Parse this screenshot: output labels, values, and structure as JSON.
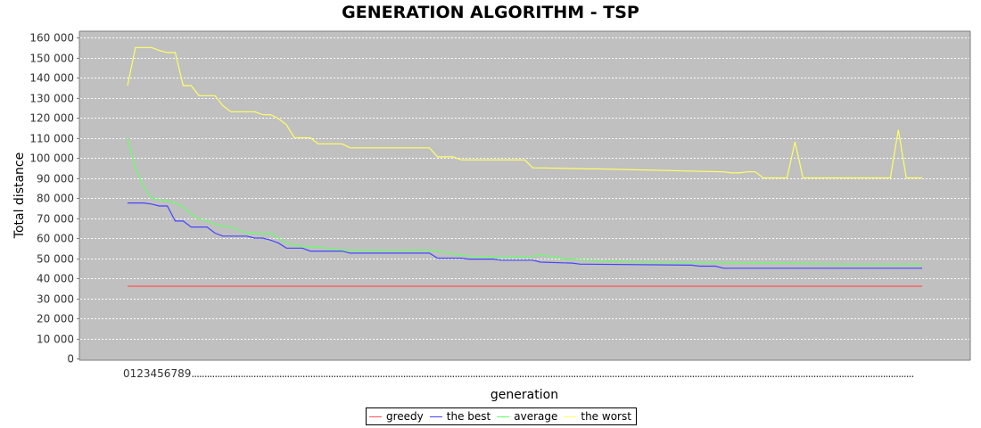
{
  "chart_data": {
    "type": "line",
    "title": "GENERATION ALGORITHM - TSP",
    "xlabel": "generation",
    "ylabel": "Total distance",
    "ylim": [
      0,
      160000
    ],
    "yticks": [
      0,
      10000,
      20000,
      30000,
      40000,
      50000,
      60000,
      70000,
      80000,
      90000,
      100000,
      110000,
      120000,
      130000,
      140000,
      150000,
      160000
    ],
    "ytick_labels": [
      "0",
      "10 000",
      "20 000",
      "30 000",
      "40 000",
      "50 000",
      "60 000",
      "70 000",
      "80 000",
      "90 000",
      "100 000",
      "110 000",
      "120 000",
      "130 000",
      "140 000",
      "150 000",
      "160 000"
    ],
    "x_tick_text": "0123456789",
    "x_tick_ellipsis": "........................................................................................................................................................................................................................................................................................",
    "x_range": [
      0,
      100
    ],
    "grid": true,
    "plot_background": "#c0c0c0",
    "legend_position": "bottom",
    "series": [
      {
        "name": "greedy",
        "color": "#ff5555",
        "x": [
          0,
          100
        ],
        "y": [
          36000,
          36000
        ]
      },
      {
        "name": "the best",
        "color": "#4444ff",
        "x": [
          0,
          2,
          3,
          4,
          5,
          6,
          7,
          8,
          9,
          10,
          11,
          12,
          13,
          14,
          15,
          16,
          17,
          18,
          19,
          20,
          21,
          22,
          23,
          27,
          28,
          38,
          39,
          42,
          43,
          46,
          47,
          51,
          52,
          56,
          57,
          58,
          71,
          72,
          74,
          75,
          100
        ],
        "y": [
          77500,
          77500,
          77000,
          76000,
          76000,
          68500,
          68500,
          65500,
          65500,
          65500,
          62500,
          61000,
          61000,
          61000,
          61000,
          60000,
          60000,
          59000,
          57500,
          55000,
          55000,
          55000,
          53500,
          53500,
          52500,
          52500,
          50000,
          50000,
          49500,
          49500,
          49000,
          49000,
          48000,
          47500,
          47000,
          47000,
          46500,
          46000,
          46000,
          45000,
          45000
        ]
      },
      {
        "name": "average",
        "color": "#66ff66",
        "x": [
          0,
          1,
          2,
          3,
          4,
          5,
          6,
          7,
          8,
          9,
          10,
          11,
          12,
          13,
          14,
          15,
          16,
          17,
          18,
          19,
          20,
          21,
          22,
          23,
          24,
          25,
          26,
          27,
          28,
          29,
          30,
          31,
          32,
          33,
          34,
          35,
          36,
          37,
          38,
          39,
          40,
          41,
          42,
          43,
          44,
          45,
          46,
          47,
          48,
          49,
          50,
          51,
          52,
          53,
          54,
          55,
          56,
          57,
          58,
          60,
          65,
          70,
          75,
          76,
          80,
          85,
          90,
          95,
          100
        ],
        "y": [
          110000,
          95000,
          86000,
          80000,
          79000,
          78500,
          77500,
          75500,
          72000,
          69500,
          68500,
          67000,
          66000,
          65500,
          64000,
          62500,
          62500,
          62000,
          62500,
          60000,
          57500,
          56500,
          56000,
          55500,
          55500,
          55000,
          54500,
          54000,
          54000,
          53800,
          53800,
          53800,
          53800,
          53700,
          53800,
          53800,
          54000,
          54000,
          53800,
          53500,
          53000,
          52000,
          51500,
          51000,
          50800,
          50500,
          50500,
          50300,
          50500,
          50500,
          50500,
          51000,
          51500,
          51000,
          50500,
          49500,
          49500,
          49200,
          49000,
          48500,
          48000,
          47800,
          47800,
          47500,
          47500,
          47300,
          47000,
          47000,
          47000
        ]
      },
      {
        "name": "the worst",
        "color": "#ffff66",
        "x": [
          0,
          1,
          2,
          3,
          4,
          5,
          6,
          7,
          8,
          9,
          10,
          11,
          12,
          13,
          14,
          15,
          16,
          17,
          18,
          19,
          20,
          21,
          22,
          23,
          24,
          25,
          26,
          27,
          28,
          29,
          38,
          39,
          40,
          41,
          42,
          50,
          51,
          52,
          58,
          59,
          75,
          76,
          77,
          78,
          79,
          80,
          83,
          84,
          85,
          96,
          97,
          98,
          100
        ],
        "y": [
          136000,
          155000,
          155000,
          155000,
          153500,
          152500,
          152500,
          136000,
          136000,
          131000,
          131000,
          131000,
          126000,
          123000,
          123000,
          123000,
          123000,
          121500,
          121500,
          119500,
          116500,
          110000,
          110000,
          110000,
          107000,
          107000,
          107000,
          107000,
          105000,
          105000,
          105000,
          100500,
          100500,
          100500,
          99000,
          99000,
          95000,
          95000,
          94500,
          94500,
          93000,
          92500,
          92500,
          93000,
          93000,
          90000,
          90000,
          108000,
          90000,
          90000,
          114000,
          90000,
          90000
        ]
      }
    ]
  }
}
